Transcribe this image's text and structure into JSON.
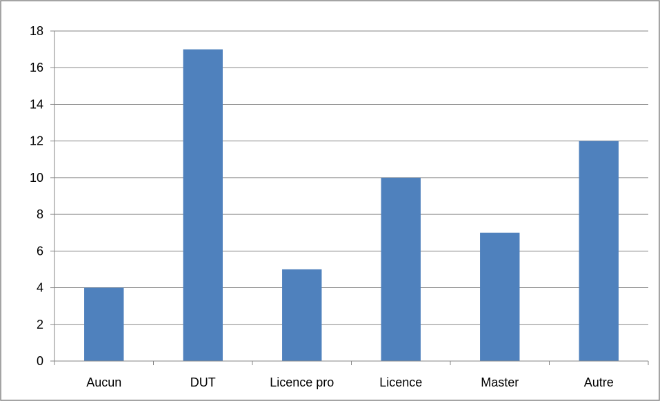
{
  "chart_data": {
    "type": "bar",
    "title": "",
    "xlabel": "",
    "ylabel": "",
    "categories": [
      "Aucun",
      "DUT",
      "Licence pro",
      "Licence",
      "Master",
      "Autre"
    ],
    "values": [
      4,
      17,
      5,
      10,
      7,
      12
    ],
    "ylim": [
      0,
      18
    ],
    "yticks": [
      0,
      2,
      4,
      6,
      8,
      10,
      12,
      14,
      16,
      18
    ],
    "grid": true,
    "legend": "none",
    "colors": {
      "bar": "#4F81BD",
      "grid": "#868686",
      "axis": "#868686",
      "border": "#868686"
    }
  }
}
